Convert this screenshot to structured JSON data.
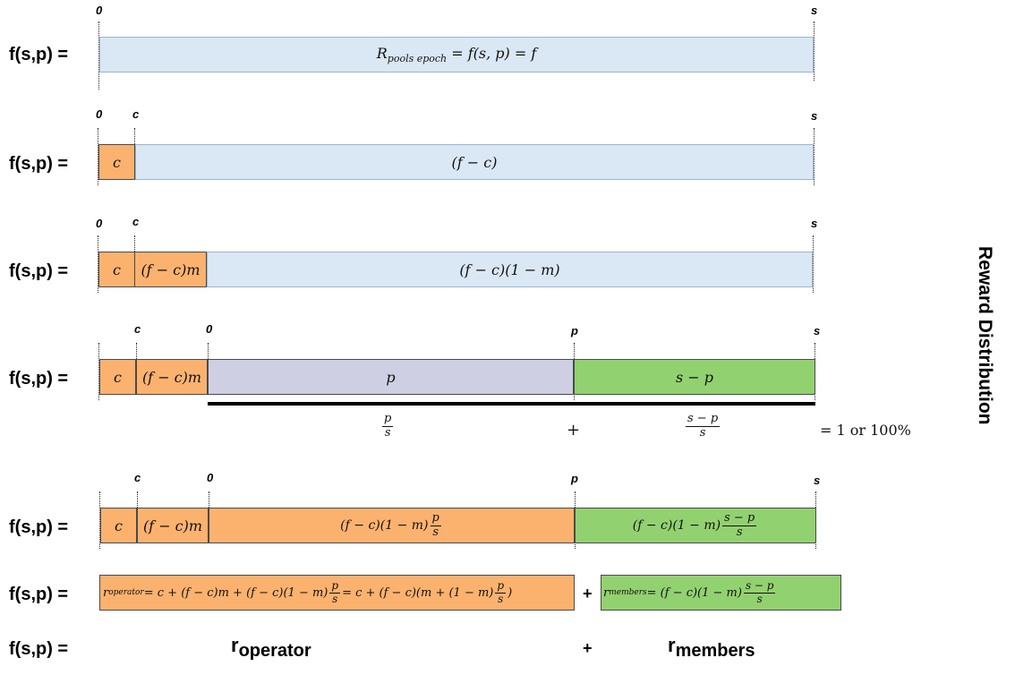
{
  "row_label": "f(s,p) =",
  "ticks": {
    "zero": "0",
    "c": "c",
    "p": "p",
    "s": "s"
  },
  "row1": {
    "bar": "R",
    "bar_sub": "pools epoch",
    "bar_rest": " = f(s, p) = f"
  },
  "row2": {
    "c": "c",
    "rest": "(f − c)"
  },
  "row3": {
    "c": "c",
    "m": "(f − c)m",
    "rest": "(f − c)(1 − m)"
  },
  "row4": {
    "c": "c",
    "m": "(f − c)m",
    "p": "p",
    "sp": "s − p"
  },
  "ratio": {
    "p_num": "p",
    "p_den": "s",
    "plus": "+",
    "sp_num": "s − p",
    "sp_den": "s",
    "total": "= 1 or 100%"
  },
  "row5": {
    "c": "c",
    "m": "(f − c)m",
    "op_pre": "(f − c)(1 − m)",
    "op_num": "p",
    "op_den": "s",
    "mem_pre": "(f − c)(1 − m)",
    "mem_num": "s − p",
    "mem_den": "s"
  },
  "row6": {
    "op_r": "r",
    "op_sub": "operator",
    "op_mid": " = c + (f − c)m + (f − c)(1 − m)",
    "op_num": "p",
    "op_den": "s",
    "op_mid2": " = c + (f − c)(m + (1 − m)",
    "op_num2": "p",
    "op_den2": "s",
    "op_end": ")",
    "plus": "+",
    "mem_r": "r",
    "mem_sub": "members",
    "mem_mid": " = (f − c)(1 − m)",
    "mem_num": "s − p",
    "mem_den": "s"
  },
  "row7": {
    "op_r": "r",
    "op_sub": "operator",
    "plus": "+",
    "mem_r": "r",
    "mem_sub": "members"
  },
  "side_title": "Reward Distribution"
}
